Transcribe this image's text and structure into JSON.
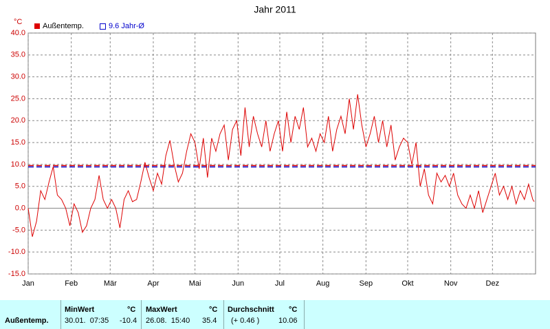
{
  "chart_data": {
    "type": "line",
    "title": "Jahr 2011",
    "y_unit": "°C",
    "x": [
      0,
      3,
      6,
      9,
      12,
      15,
      18,
      21,
      24,
      27,
      30,
      33,
      36,
      39,
      42,
      45,
      48,
      51,
      54,
      57,
      60,
      63,
      66,
      69,
      72,
      75,
      78,
      81,
      84,
      87,
      90,
      93,
      96,
      99,
      102,
      105,
      108,
      111,
      114,
      117,
      120,
      123,
      126,
      129,
      132,
      135,
      138,
      141,
      144,
      147,
      150,
      153,
      156,
      159,
      162,
      165,
      168,
      171,
      174,
      177,
      180,
      183,
      186,
      189,
      192,
      195,
      198,
      201,
      204,
      207,
      210,
      213,
      216,
      219,
      222,
      225,
      228,
      231,
      234,
      237,
      240,
      243,
      246,
      249,
      252,
      255,
      258,
      261,
      264,
      267,
      270,
      273,
      276,
      279,
      282,
      285,
      288,
      291,
      294,
      297,
      300,
      303,
      306,
      309,
      312,
      315,
      318,
      321,
      324,
      327,
      330,
      333,
      336,
      339,
      342,
      345,
      348,
      351,
      354,
      357,
      360,
      363,
      364
    ],
    "series": [
      {
        "name": "Außentemp.",
        "color": "#dd0000",
        "values": [
          0,
          -6.5,
          -3,
          4,
          2,
          6,
          9.5,
          3,
          2,
          0,
          -4,
          1,
          -1,
          -5.5,
          -4,
          0,
          2,
          7.5,
          2,
          0,
          2,
          0,
          -4.5,
          2,
          4,
          1.5,
          2,
          6,
          10.5,
          7,
          4,
          8,
          5.5,
          12,
          15.5,
          10,
          6,
          8,
          13,
          17,
          15,
          9,
          16,
          7,
          16,
          13,
          17,
          19,
          11,
          18,
          20,
          12,
          23,
          14,
          21,
          17,
          14,
          20,
          13,
          17,
          20,
          13,
          22,
          15,
          21,
          18,
          23,
          14,
          16,
          13,
          17,
          15,
          21,
          13,
          18,
          21,
          17,
          25,
          18,
          26,
          19,
          14,
          17,
          21,
          15,
          20,
          14,
          19,
          11,
          14,
          16,
          15,
          10,
          15,
          5,
          9,
          3,
          1,
          8,
          6,
          7.5,
          5,
          8,
          3,
          1,
          0,
          3,
          0,
          4,
          -1,
          2,
          5,
          8,
          3,
          5,
          2,
          5,
          1,
          4,
          2,
          5.5,
          2,
          1.5
        ]
      }
    ],
    "reference_line": {
      "label": "9.6 Jahr-Ø",
      "value": 9.6,
      "color": "#0000cc"
    },
    "xlim": [
      0,
      365
    ],
    "xticks": [
      {
        "value": 0,
        "label": "Jan"
      },
      {
        "value": 31,
        "label": "Feb"
      },
      {
        "value": 59,
        "label": "Mär"
      },
      {
        "value": 90,
        "label": "Apr"
      },
      {
        "value": 120,
        "label": "Mai"
      },
      {
        "value": 151,
        "label": "Jun"
      },
      {
        "value": 181,
        "label": "Jul"
      },
      {
        "value": 212,
        "label": "Aug"
      },
      {
        "value": 243,
        "label": "Sep"
      },
      {
        "value": 273,
        "label": "Okt"
      },
      {
        "value": 304,
        "label": "Nov"
      },
      {
        "value": 334,
        "label": "Dez"
      }
    ],
    "ylim": [
      -15,
      40
    ],
    "yticks": [
      {
        "value": -15,
        "label": "-15.0"
      },
      {
        "value": -10,
        "label": "-10.0"
      },
      {
        "value": -5,
        "label": "-5.0"
      },
      {
        "value": 0,
        "label": "0.0"
      },
      {
        "value": 5,
        "label": "5.0"
      },
      {
        "value": 10,
        "label": "10.0"
      },
      {
        "value": 15,
        "label": "15.0"
      },
      {
        "value": 20,
        "label": "20.0"
      },
      {
        "value": 25,
        "label": "25.0"
      },
      {
        "value": 30,
        "label": "30.0"
      },
      {
        "value": 35,
        "label": "35.0"
      },
      {
        "value": 40,
        "label": "40.0"
      }
    ],
    "grid": true
  },
  "footer": {
    "headers": [
      "MinWert",
      "°C",
      "MaxWert",
      "°C",
      "Durchschnitt",
      "°C"
    ],
    "row": [
      "Außentemp.",
      "30.01.  07:35",
      "-10.4",
      "26.08.  15:40",
      "35.4",
      "(+ 0.46 )",
      "10.06"
    ]
  }
}
